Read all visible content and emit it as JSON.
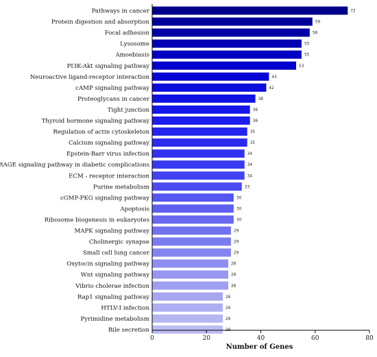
{
  "chart_data": {
    "type": "bar",
    "orientation": "horizontal",
    "title": "",
    "xlabel": "Number of Genes",
    "ylabel": "",
    "xlim": [
      0,
      80
    ],
    "xticks": [
      0,
      20,
      40,
      60,
      80
    ],
    "grid": false,
    "categories": [
      "Pathways in cancer",
      "Protein digestion and absorption",
      "Focal adhesion",
      "Lysosome",
      "Amoebiasis",
      "PI3K-Akt signaling pathway",
      "Neuroactive ligand-receptor interaction",
      "cAMP signaling pathway",
      "Proteoglycans in cancer",
      "Tight junction",
      "Thyroid hormone signaling pathway",
      "Regulation of actin cytoskeleton",
      "Calcium signaling pathway",
      "Epstein-Barr virus infection",
      "AGE-RAGE signaling pathway in diabetic complications",
      "ECM - receptor interaction",
      "Purine metabolism",
      "cGMP-PKG signaling pathway",
      "Apoptosis",
      "Ribosome biogenesis in eukaryotes",
      "MAPK signaling pathway",
      "Cholinergic synapse",
      "Small cell lung cancer",
      "Oxytocin signaling pathway",
      "Wnt signaling pathway",
      "Vibrio cholerae infection",
      "Rap1 signaling pathway",
      "HTLV-I infection",
      "Pyrimidine metabolism",
      "Bile secretion"
    ],
    "values": [
      72,
      59,
      58,
      55,
      55,
      53,
      43,
      42,
      38,
      36,
      36,
      35,
      35,
      34,
      34,
      34,
      33,
      30,
      30,
      30,
      29,
      29,
      29,
      28,
      28,
      28,
      26,
      26,
      26,
      26
    ],
    "color_gradient": [
      "#00008b",
      "#0000cd",
      "#1a1aee",
      "#3d3df2",
      "#6b6bf0",
      "#9999f0",
      "#bcbcf3"
    ]
  }
}
